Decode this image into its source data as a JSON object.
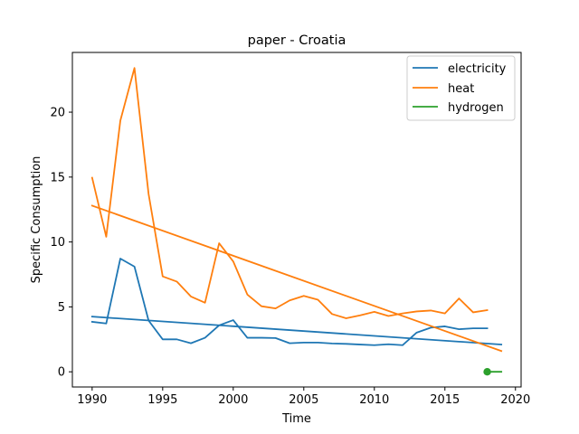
{
  "chart_data": {
    "type": "line",
    "title": "paper - Croatia",
    "xlabel": "Time",
    "ylabel": "Specific Consumption",
    "xlim": [
      1988.6,
      2020.4
    ],
    "ylim": [
      -1.17,
      24.6
    ],
    "xticks": [
      1990,
      1995,
      2000,
      2005,
      2010,
      2015,
      2020
    ],
    "yticks": [
      0,
      5,
      10,
      15,
      20
    ],
    "grid": false,
    "legend_position": "top-right",
    "series": [
      {
        "name": "electricity",
        "color": "#1f77b4",
        "x": [
          1990,
          1991,
          1992,
          1993,
          1994,
          1995,
          1996,
          1997,
          1998,
          1999,
          2000,
          2001,
          2002,
          2003,
          2004,
          2005,
          2006,
          2007,
          2008,
          2009,
          2010,
          2011,
          2012,
          2013,
          2014,
          2015,
          2016,
          2017,
          2018
        ],
        "values": [
          3.85,
          3.72,
          8.72,
          8.1,
          3.95,
          2.5,
          2.5,
          2.2,
          2.62,
          3.58,
          3.98,
          2.62,
          2.62,
          2.6,
          2.2,
          2.25,
          2.25,
          2.18,
          2.15,
          2.1,
          2.05,
          2.12,
          2.05,
          3.02,
          3.4,
          3.5,
          3.28,
          3.35,
          3.35
        ]
      },
      {
        "name": "electricity trend",
        "color": "#1f77b4",
        "x": [
          1990,
          2019
        ],
        "values": [
          4.25,
          2.1
        ]
      },
      {
        "name": "heat",
        "color": "#ff7f0e",
        "x": [
          1990,
          1991,
          1992,
          1993,
          1994,
          1995,
          1996,
          1997,
          1998,
          1999,
          2000,
          2001,
          2002,
          2003,
          2004,
          2005,
          2006,
          2007,
          2008,
          2009,
          2010,
          2011,
          2012,
          2013,
          2014,
          2015,
          2016,
          2017,
          2018
        ],
        "values": [
          14.95,
          10.4,
          19.35,
          23.4,
          13.7,
          7.35,
          6.95,
          5.8,
          5.32,
          9.9,
          8.5,
          5.95,
          5.05,
          4.88,
          5.5,
          5.85,
          5.55,
          4.45,
          4.12,
          4.35,
          4.62,
          4.3,
          4.5,
          4.65,
          4.72,
          4.5,
          5.65,
          4.58,
          4.75
        ]
      },
      {
        "name": "heat trend",
        "color": "#ff7f0e",
        "x": [
          1990,
          2019
        ],
        "values": [
          12.8,
          1.6
        ]
      },
      {
        "name": "hydrogen",
        "color": "#2ca02c",
        "x": [
          2018
        ],
        "values": [
          0.0
        ]
      },
      {
        "name": "hydrogen trend",
        "color": "#2ca02c",
        "x": [
          2018,
          2019
        ],
        "values": [
          0.0,
          0.0
        ]
      }
    ],
    "legend": [
      {
        "label": "electricity",
        "color": "#1f77b4"
      },
      {
        "label": "heat",
        "color": "#ff7f0e"
      },
      {
        "label": "hydrogen",
        "color": "#2ca02c"
      }
    ]
  }
}
